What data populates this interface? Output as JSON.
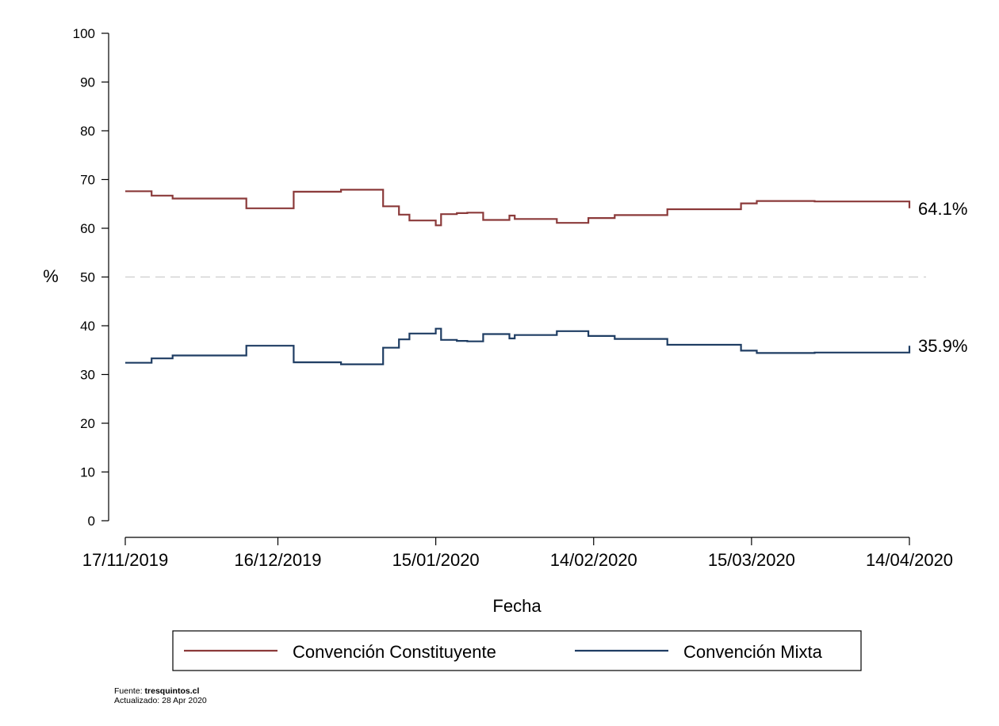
{
  "chart_data": {
    "type": "line",
    "step": true,
    "ylabel": "%",
    "xlabel": "Fecha",
    "ylim": [
      0,
      100
    ],
    "yticks": [
      0,
      10,
      20,
      30,
      40,
      50,
      60,
      70,
      80,
      90,
      100
    ],
    "xlim": [
      "2019-11-17",
      "2020-04-14"
    ],
    "xticks": [
      "2019-11-17",
      "2019-12-16",
      "2020-01-15",
      "2020-02-14",
      "2020-03-15",
      "2020-04-14"
    ],
    "xtick_labels": [
      "17/11/2019",
      "16/12/2019",
      "15/01/2020",
      "14/02/2020",
      "15/03/2020",
      "14/04/2020"
    ],
    "reference_line": {
      "y": 50,
      "style": "dashed",
      "color": "#d3d3d3"
    },
    "grid": false,
    "legend": {
      "position": "bottom",
      "boxed": true
    },
    "series": [
      {
        "name": "Convención Constituyente",
        "color": "#8b3a3a",
        "end_label": "64.1%",
        "points": [
          [
            "2019-11-17",
            67.6
          ],
          [
            "2019-11-22",
            66.7
          ],
          [
            "2019-11-26",
            66.1
          ],
          [
            "2019-12-10",
            64.1
          ],
          [
            "2019-12-19",
            67.5
          ],
          [
            "2019-12-28",
            67.9
          ],
          [
            "2020-01-05",
            64.5
          ],
          [
            "2020-01-08",
            62.8
          ],
          [
            "2020-01-10",
            61.6
          ],
          [
            "2020-01-15",
            60.6
          ],
          [
            "2020-01-16",
            62.9
          ],
          [
            "2020-01-19",
            63.1
          ],
          [
            "2020-01-21",
            63.2
          ],
          [
            "2020-01-24",
            61.7
          ],
          [
            "2020-01-29",
            62.6
          ],
          [
            "2020-01-30",
            61.9
          ],
          [
            "2020-02-07",
            61.1
          ],
          [
            "2020-02-13",
            62.1
          ],
          [
            "2020-02-18",
            62.7
          ],
          [
            "2020-02-28",
            63.9
          ],
          [
            "2020-03-13",
            65.1
          ],
          [
            "2020-03-16",
            65.6
          ],
          [
            "2020-03-27",
            65.5
          ],
          [
            "2020-04-14",
            64.1
          ]
        ]
      },
      {
        "name": "Convención Mixta",
        "color": "#1f3d63",
        "end_label": "35.9%",
        "points": [
          [
            "2019-11-17",
            32.4
          ],
          [
            "2019-11-22",
            33.3
          ],
          [
            "2019-11-26",
            33.9
          ],
          [
            "2019-12-10",
            35.9
          ],
          [
            "2019-12-19",
            32.5
          ],
          [
            "2019-12-28",
            32.1
          ],
          [
            "2020-01-05",
            35.5
          ],
          [
            "2020-01-08",
            37.2
          ],
          [
            "2020-01-10",
            38.4
          ],
          [
            "2020-01-15",
            39.4
          ],
          [
            "2020-01-16",
            37.1
          ],
          [
            "2020-01-19",
            36.9
          ],
          [
            "2020-01-21",
            36.8
          ],
          [
            "2020-01-24",
            38.3
          ],
          [
            "2020-01-29",
            37.4
          ],
          [
            "2020-01-30",
            38.1
          ],
          [
            "2020-02-07",
            38.9
          ],
          [
            "2020-02-13",
            37.9
          ],
          [
            "2020-02-18",
            37.3
          ],
          [
            "2020-02-28",
            36.1
          ],
          [
            "2020-03-13",
            34.9
          ],
          [
            "2020-03-16",
            34.4
          ],
          [
            "2020-03-27",
            34.5
          ],
          [
            "2020-04-14",
            35.9
          ]
        ]
      }
    ]
  },
  "footer": {
    "source_prefix": "Fuente: ",
    "source_site": "tresquintos.cl",
    "updated": "Actualizado: 28 Apr 2020"
  }
}
